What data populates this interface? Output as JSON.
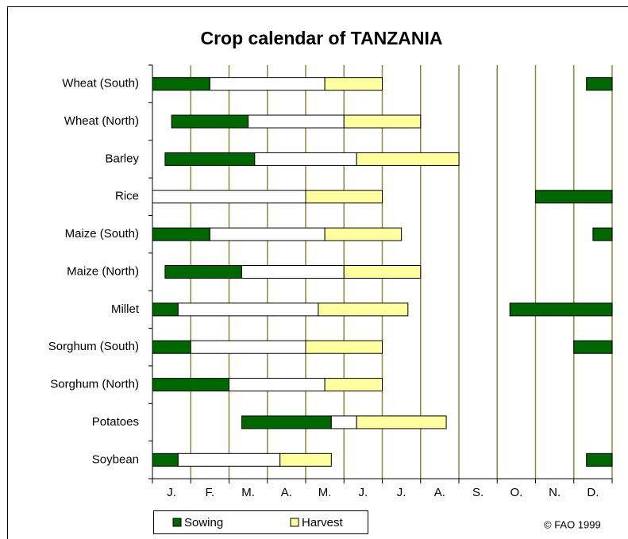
{
  "chart_data": {
    "type": "gantt",
    "title": "Crop calendar of TANZANIA",
    "categories": [
      "Wheat (South)",
      "Wheat (North)",
      "Barley",
      "Rice",
      "Maize (South)",
      "Maize (North)",
      "Millet",
      "Sorghum (South)",
      "Sorghum (North)",
      "Potatoes",
      "Soybean"
    ],
    "months": [
      "J.",
      "F.",
      "M.",
      "A.",
      "M.",
      "J.",
      "J.",
      "A.",
      "S.",
      "O.",
      "N.",
      "D."
    ],
    "xlim": [
      0,
      12
    ],
    "xticks": [
      0,
      1,
      2,
      3,
      4,
      5,
      6,
      7,
      8,
      9,
      10,
      11,
      12
    ],
    "grid": true,
    "grid_color": "#8a8a3c",
    "series": [
      {
        "name": "Sowing",
        "color": "#006600",
        "values": [
          [
            [
              0,
              1.5
            ],
            [
              11.33,
              12
            ]
          ],
          [
            [
              0.5,
              2.5
            ]
          ],
          [
            [
              0.33,
              2.67
            ]
          ],
          [
            [
              10,
              12
            ]
          ],
          [
            [
              0,
              1.5
            ],
            [
              11.5,
              12
            ]
          ],
          [
            [
              0.33,
              2.33
            ]
          ],
          [
            [
              0,
              0.67
            ],
            [
              9.33,
              12
            ]
          ],
          [
            [
              0,
              1
            ],
            [
              11,
              12
            ]
          ],
          [
            [
              0,
              2
            ]
          ],
          [
            [
              2.33,
              4.67
            ]
          ],
          [
            [
              0,
              0.67
            ],
            [
              11.33,
              12
            ]
          ]
        ]
      },
      {
        "color": "#ffffff",
        "values": [
          [
            [
              1.5,
              4.5
            ]
          ],
          [
            [
              2.5,
              5
            ]
          ],
          [
            [
              2.67,
              5.33
            ]
          ],
          [
            [
              0,
              4
            ]
          ],
          [
            [
              1.5,
              4.5
            ]
          ],
          [
            [
              2.33,
              5
            ]
          ],
          [
            [
              0.67,
              4.33
            ]
          ],
          [
            [
              1,
              4
            ]
          ],
          [
            [
              2,
              4.5
            ]
          ],
          [
            [
              4.67,
              5.33
            ]
          ],
          [
            [
              0.67,
              3.33
            ]
          ]
        ]
      },
      {
        "name": "Harvest",
        "color": "#ffffa0",
        "values": [
          [
            [
              4.5,
              6
            ]
          ],
          [
            [
              5,
              7
            ]
          ],
          [
            [
              5.33,
              8
            ]
          ],
          [
            [
              4,
              6
            ]
          ],
          [
            [
              4.5,
              6.5
            ]
          ],
          [
            [
              5,
              7
            ]
          ],
          [
            [
              4.33,
              6.67
            ]
          ],
          [
            [
              4,
              6
            ]
          ],
          [
            [
              4.5,
              6
            ]
          ],
          [
            [
              5.33,
              7.67
            ]
          ],
          [
            [
              3.33,
              4.67
            ]
          ]
        ]
      }
    ],
    "note": "© FAO 1999"
  }
}
